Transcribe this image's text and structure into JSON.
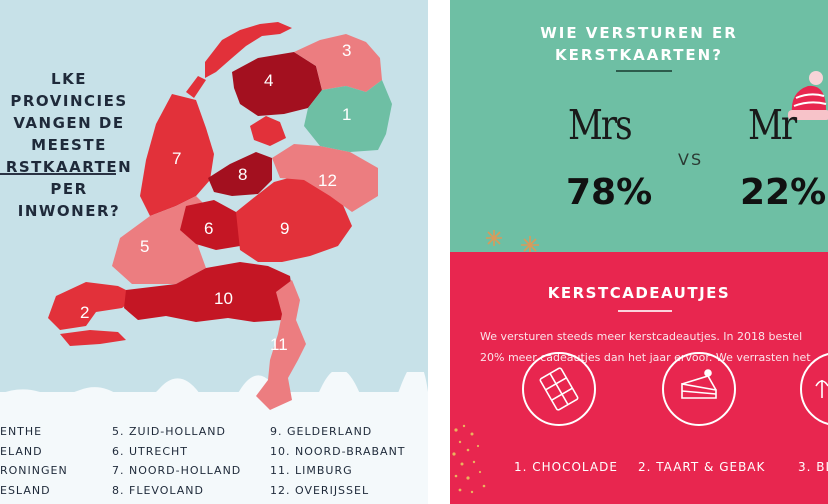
{
  "left_panel": {
    "question_lines": [
      "LKE PROVINCIES",
      "VANGEN DE MEESTE",
      "RSTKAARTEN PER",
      "INWONER?"
    ],
    "map_numbers": [
      "1",
      "2",
      "3",
      "4",
      "5",
      "6",
      "7",
      "8",
      "9",
      "10",
      "11",
      "12"
    ],
    "legend": {
      "col1": [
        "ENTHE",
        "ELAND",
        "RONINGEN",
        "ESLAND"
      ],
      "col2": [
        "5. ZUID-HOLLAND",
        "6. UTRECHT",
        "7. NOORD-HOLLAND",
        "8. FLEVOLAND"
      ],
      "col3": [
        "9.   GELDERLAND",
        "10. NOORD-BRABANT",
        "11. LIMBURG",
        "12. OVERIJSSEL"
      ]
    },
    "colors": {
      "background": "#c7e1e8",
      "dark": "#a3101f",
      "mid": "#e2313a",
      "light": "#ec7d80",
      "green": "#6ebfa4"
    }
  },
  "right_panel": {
    "title_line1": "WIE VERSTUREN ER",
    "title_line2": "KERSTKAARTEN?",
    "mrs_label": "Mrs",
    "mr_label": "Mr",
    "vs_label": "VS",
    "mrs_percent": "78%",
    "mr_percent": "22%",
    "gifts_title": "KERSTCADEAUTJES",
    "gifts_text_line1": "We versturen steeds meer kerstcadeautjes. In 2018 bestel",
    "gifts_text_line2": "20% meer cadeautjes dan het jaar ervoor. We verrasten het",
    "gift_items": [
      "1. CHOCOLADE",
      "2. TAART & GEBAK",
      "3. BL"
    ],
    "colors": {
      "teal": "#6ebfa4",
      "red": "#e8264f"
    }
  }
}
